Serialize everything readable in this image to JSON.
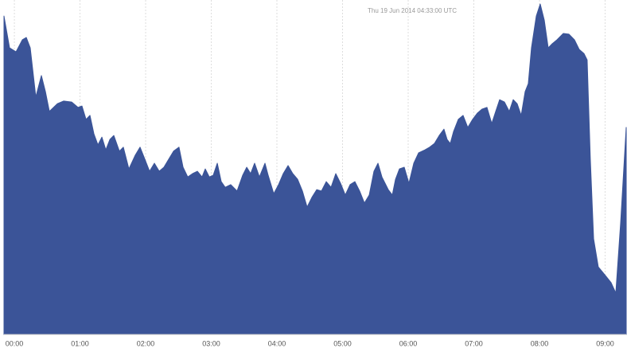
{
  "chart_data": {
    "type": "area",
    "annotation": "Thu 19 Jun 2014 04:33:00 UTC",
    "color": "#3b5498",
    "grid": true,
    "xlim": [
      -9.5,
      559.3
    ],
    "ylim": [
      0,
      100
    ],
    "xticks": [
      {
        "value": 0,
        "label": "00:00"
      },
      {
        "value": 60,
        "label": "01:00"
      },
      {
        "value": 120,
        "label": "02:00"
      },
      {
        "value": 180,
        "label": "03:00"
      },
      {
        "value": 240,
        "label": "04:00"
      },
      {
        "value": 300,
        "label": "05:00"
      },
      {
        "value": 360,
        "label": "06:00"
      },
      {
        "value": 420,
        "label": "07:00"
      },
      {
        "value": 480,
        "label": "08:00"
      },
      {
        "value": 540,
        "label": "09:00"
      }
    ],
    "x": [
      -9.5,
      -4.4,
      1.5,
      7.3,
      10.9,
      14.5,
      19.6,
      24.7,
      28.4,
      32.0,
      39.3,
      45.1,
      52.4,
      58.2,
      61.8,
      65.5,
      69.1,
      72.7,
      76.4,
      80.0,
      83.6,
      87.3,
      90.9,
      96.0,
      99.6,
      104.7,
      110.5,
      114.9,
      119.3,
      123.6,
      128.0,
      132.4,
      136.7,
      141.1,
      145.5,
      150.5,
      154.2,
      158.5,
      162.9,
      167.3,
      171.6,
      174.5,
      178.2,
      181.8,
      185.5,
      189.1,
      192.7,
      197.8,
      203.6,
      208.7,
      212.4,
      216.0,
      219.6,
      224.0,
      229.1,
      232.0,
      237.1,
      241.5,
      245.8,
      250.2,
      254.5,
      258.9,
      263.3,
      267.6,
      272.0,
      276.4,
      280.7,
      285.1,
      289.5,
      293.8,
      298.2,
      302.5,
      306.9,
      311.3,
      315.6,
      320.0,
      324.4,
      328.7,
      332.4,
      336.0,
      341.8,
      345.5,
      348.4,
      352.0,
      356.4,
      360.7,
      365.1,
      369.5,
      375.3,
      379.6,
      384.0,
      388.4,
      392.7,
      395.6,
      398.5,
      401.5,
      405.8,
      410.2,
      414.5,
      418.9,
      423.3,
      427.6,
      432.0,
      436.4,
      440.0,
      443.6,
      448.0,
      452.4,
      456.0,
      459.6,
      463.3,
      466.9,
      469.8,
      472.7,
      477.1,
      480.7,
      484.4,
      488.0,
      491.6,
      496.0,
      501.8,
      506.9,
      512.0,
      516.4,
      520.7,
      523.6,
      526.5,
      529.5,
      533.8,
      539.6,
      545.5,
      549.8,
      554.2,
      559.3
    ],
    "values": [
      95.2,
      85.7,
      84.5,
      88.1,
      88.8,
      85.7,
      71.0,
      77.4,
      72.6,
      66.7,
      69.0,
      69.8,
      69.5,
      67.9,
      68.3,
      64.3,
      65.5,
      60.0,
      56.7,
      59.0,
      55.2,
      58.3,
      59.5,
      54.8,
      56.0,
      49.5,
      53.6,
      56.0,
      52.4,
      48.8,
      51.2,
      48.8,
      50.0,
      52.4,
      54.8,
      56.0,
      50.0,
      47.1,
      48.1,
      48.8,
      47.1,
      49.5,
      47.1,
      47.6,
      51.2,
      45.7,
      44.0,
      44.8,
      42.9,
      47.6,
      50.0,
      48.1,
      51.2,
      47.1,
      51.2,
      47.6,
      42.1,
      44.8,
      48.1,
      50.5,
      48.1,
      46.4,
      42.9,
      38.1,
      41.0,
      43.3,
      42.9,
      45.7,
      44.0,
      48.1,
      45.2,
      41.7,
      44.8,
      45.7,
      42.9,
      39.3,
      41.7,
      48.8,
      51.2,
      47.1,
      43.3,
      41.7,
      46.4,
      49.5,
      50.0,
      45.2,
      51.2,
      54.3,
      55.2,
      56.0,
      57.1,
      59.5,
      61.4,
      58.3,
      57.1,
      60.7,
      64.3,
      65.5,
      61.9,
      64.3,
      66.2,
      67.4,
      67.9,
      63.1,
      66.7,
      70.2,
      69.5,
      66.7,
      70.2,
      69.0,
      65.5,
      72.6,
      75.0,
      85.7,
      95.2,
      98.8,
      94.0,
      85.7,
      86.9,
      88.1,
      90.0,
      89.8,
      88.1,
      85.2,
      84.0,
      82.1,
      52.4,
      28.6,
      20.2,
      17.9,
      15.5,
      12.4,
      33.3,
      61.9
    ]
  }
}
